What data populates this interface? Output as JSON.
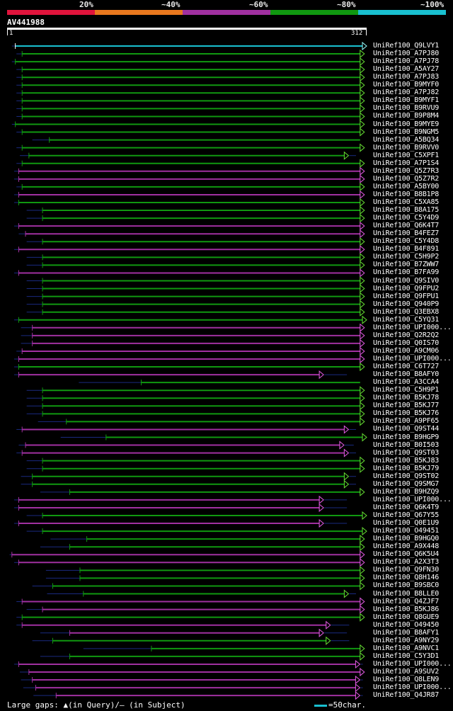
{
  "legend": {
    "labels": [
      "20%",
      "~40%",
      "~60%",
      "~80%",
      "~100%"
    ],
    "colors": [
      "#e0143c",
      "#e8781e",
      "#a030a0",
      "#109810",
      "#19c0d0"
    ]
  },
  "query": {
    "name": "AV441988",
    "start_label": "1",
    "end_label": "312",
    "length": 312
  },
  "colors": {
    "green": "#109810",
    "magenta": "#a030a0",
    "cyan": "#19c0d0",
    "gap_line": "#1a2a80",
    "arrow_green": "#66e033",
    "arrow_magenta": "#e65ce6"
  },
  "hits": [
    {
      "name": "UniRef100_Q9LVY1",
      "c": "cyan",
      "s": 6,
      "e": 312,
      "l": 3,
      "r": 0,
      "ar": true
    },
    {
      "name": "UniRef100_A7PJ80",
      "c": "green",
      "s": 12,
      "e": 310,
      "l": 5,
      "r": 0,
      "ar": true
    },
    {
      "name": "UniRef100_A7PJ78",
      "c": "green",
      "s": 6,
      "e": 310,
      "l": 3,
      "r": 0,
      "ar": true
    },
    {
      "name": "UniRef100_A5AY27",
      "c": "green",
      "s": 12,
      "e": 310,
      "l": 5,
      "r": 0,
      "ar": true
    },
    {
      "name": "UniRef100_A7PJ83",
      "c": "green",
      "s": 12,
      "e": 310,
      "l": 5,
      "r": 0,
      "ar": true
    },
    {
      "name": "UniRef100_B9MYF0",
      "c": "green",
      "s": 12,
      "e": 310,
      "l": 5,
      "r": 0,
      "ar": true
    },
    {
      "name": "UniRef100_A7PJ82",
      "c": "green",
      "s": 12,
      "e": 310,
      "l": 5,
      "r": 0,
      "ar": true
    },
    {
      "name": "UniRef100_B9MYF1",
      "c": "green",
      "s": 12,
      "e": 310,
      "l": 5,
      "r": 0,
      "ar": true
    },
    {
      "name": "UniRef100_B9RVU9",
      "c": "green",
      "s": 12,
      "e": 310,
      "l": 5,
      "r": 0,
      "ar": true
    },
    {
      "name": "UniRef100_B9P8M4",
      "c": "green",
      "s": 12,
      "e": 310,
      "l": 5,
      "r": 0,
      "ar": true
    },
    {
      "name": "UniRef100_B9MYE9",
      "c": "green",
      "s": 6,
      "e": 310,
      "l": 3,
      "r": 0,
      "ar": true
    },
    {
      "name": "UniRef100_B9NGM5",
      "c": "green",
      "s": 12,
      "e": 310,
      "l": 5,
      "r": 0,
      "ar": true
    },
    {
      "name": "UniRef100_A5BQ34",
      "c": "green",
      "s": 36,
      "e": 310,
      "l": 15,
      "r": 0,
      "ar": false
    },
    {
      "name": "UniRef100_B9RVV0",
      "c": "green",
      "s": 12,
      "e": 310,
      "l": 5,
      "r": 0,
      "ar": true
    },
    {
      "name": "UniRef100_C5XPF1",
      "c": "green",
      "s": 18,
      "e": 296,
      "l": 8,
      "r": 6,
      "ar": true
    },
    {
      "name": "UniRef100_A7P1S4",
      "c": "green",
      "s": 12,
      "e": 310,
      "l": 5,
      "r": 0,
      "ar": true
    },
    {
      "name": "UniRef100_Q5Z7R3",
      "c": "magenta",
      "s": 9,
      "e": 310,
      "l": 4,
      "r": 0,
      "ar": true
    },
    {
      "name": "UniRef100_Q5Z7R2",
      "c": "magenta",
      "s": 9,
      "e": 310,
      "l": 4,
      "r": 0,
      "ar": true
    },
    {
      "name": "UniRef100_A5BY00",
      "c": "green",
      "s": 12,
      "e": 310,
      "l": 5,
      "r": 0,
      "ar": true
    },
    {
      "name": "UniRef100_B8B1P8",
      "c": "magenta",
      "s": 9,
      "e": 310,
      "l": 4,
      "r": 0,
      "ar": true
    },
    {
      "name": "UniRef100_C5XA85",
      "c": "green",
      "s": 9,
      "e": 310,
      "l": 4,
      "r": 0,
      "ar": true
    },
    {
      "name": "UniRef100_B8A175",
      "c": "green",
      "s": 30,
      "e": 310,
      "l": 14,
      "r": 0,
      "ar": true
    },
    {
      "name": "UniRef100_C5Y4D9",
      "c": "green",
      "s": 30,
      "e": 310,
      "l": 14,
      "r": 0,
      "ar": true
    },
    {
      "name": "UniRef100_Q6K4T7",
      "c": "magenta",
      "s": 9,
      "e": 310,
      "l": 4,
      "r": 0,
      "ar": true
    },
    {
      "name": "UniRef100_B4FEZ7",
      "c": "magenta",
      "s": 15,
      "e": 310,
      "l": 6,
      "r": 0,
      "ar": true
    },
    {
      "name": "UniRef100_C5Y4D8",
      "c": "green",
      "s": 30,
      "e": 310,
      "l": 14,
      "r": 0,
      "ar": true
    },
    {
      "name": "UniRef100_B4F891",
      "c": "magenta",
      "s": 9,
      "e": 310,
      "l": 4,
      "r": 0,
      "ar": true
    },
    {
      "name": "UniRef100_C5H9P2",
      "c": "green",
      "s": 30,
      "e": 310,
      "l": 14,
      "r": 0,
      "ar": true
    },
    {
      "name": "UniRef100_B7ZWW7",
      "c": "green",
      "s": 30,
      "e": 310,
      "l": 14,
      "r": 0,
      "ar": true
    },
    {
      "name": "UniRef100_B7FA99",
      "c": "magenta",
      "s": 9,
      "e": 310,
      "l": 4,
      "r": 0,
      "ar": true
    },
    {
      "name": "UniRef100_Q9SIV0",
      "c": "green",
      "s": 30,
      "e": 310,
      "l": 14,
      "r": 0,
      "ar": true
    },
    {
      "name": "UniRef100_Q9FPU2",
      "c": "green",
      "s": 30,
      "e": 310,
      "l": 14,
      "r": 0,
      "ar": true
    },
    {
      "name": "UniRef100_Q9FPU1",
      "c": "green",
      "s": 30,
      "e": 310,
      "l": 14,
      "r": 0,
      "ar": true
    },
    {
      "name": "UniRef100_Q940P9",
      "c": "green",
      "s": 30,
      "e": 310,
      "l": 14,
      "r": 0,
      "ar": true
    },
    {
      "name": "UniRef100_Q3EBX8",
      "c": "green",
      "s": 30,
      "e": 310,
      "l": 14,
      "r": 0,
      "ar": true
    },
    {
      "name": "UniRef100_C5YQ31",
      "c": "green",
      "s": 9,
      "e": 312,
      "l": 4,
      "r": 0,
      "ar": true
    },
    {
      "name": "UniRef100_UPI000...",
      "c": "magenta",
      "s": 21,
      "e": 310,
      "l": 10,
      "r": 0,
      "ar": true
    },
    {
      "name": "UniRef100_Q2R2Q2",
      "c": "magenta",
      "s": 21,
      "e": 310,
      "l": 10,
      "r": 0,
      "ar": true
    },
    {
      "name": "UniRef100_Q0IS70",
      "c": "magenta",
      "s": 21,
      "e": 310,
      "l": 10,
      "r": 0,
      "ar": true
    },
    {
      "name": "UniRef100_A9CM06",
      "c": "magenta",
      "s": 12,
      "e": 310,
      "l": 5,
      "r": 0,
      "ar": true
    },
    {
      "name": "UniRef100_UPI000...",
      "c": "magenta",
      "s": 9,
      "e": 310,
      "l": 4,
      "r": 0,
      "ar": true
    },
    {
      "name": "UniRef100_C6T727",
      "c": "green",
      "s": 9,
      "e": 310,
      "l": 4,
      "r": 0,
      "ar": true
    },
    {
      "name": "UniRef100_B8AFY0",
      "c": "magenta",
      "s": 9,
      "e": 274,
      "l": 4,
      "r": 20,
      "ar": true
    },
    {
      "name": "UniRef100_A3CCA4",
      "c": "green",
      "s": 117,
      "e": 310,
      "l": 55,
      "r": 0,
      "ar": false
    },
    {
      "name": "UniRef100_C5H9P1",
      "c": "green",
      "s": 30,
      "e": 310,
      "l": 14,
      "r": 0,
      "ar": true
    },
    {
      "name": "UniRef100_B5KJ78",
      "c": "green",
      "s": 30,
      "e": 310,
      "l": 14,
      "r": 0,
      "ar": true
    },
    {
      "name": "UniRef100_B5KJ77",
      "c": "green",
      "s": 30,
      "e": 310,
      "l": 14,
      "r": 0,
      "ar": true
    },
    {
      "name": "UniRef100_B5KJ76",
      "c": "green",
      "s": 30,
      "e": 310,
      "l": 14,
      "r": 0,
      "ar": true
    },
    {
      "name": "UniRef100_A9PF65",
      "c": "green",
      "s": 51,
      "e": 310,
      "l": 25,
      "r": 0,
      "ar": true
    },
    {
      "name": "UniRef100_Q9ST44",
      "c": "magenta",
      "s": 12,
      "e": 296,
      "l": 5,
      "r": 6,
      "ar": true
    },
    {
      "name": "UniRef100_B9HGP9",
      "c": "green",
      "s": 86,
      "e": 312,
      "l": 40,
      "r": 0,
      "ar": true
    },
    {
      "name": "UniRef100_B0I503",
      "c": "magenta",
      "s": 15,
      "e": 292,
      "l": 6,
      "r": 8,
      "ar": true
    },
    {
      "name": "UniRef100_Q9ST03",
      "c": "magenta",
      "s": 12,
      "e": 296,
      "l": 5,
      "r": 6,
      "ar": true
    },
    {
      "name": "UniRef100_B5KJ83",
      "c": "green",
      "s": 30,
      "e": 310,
      "l": 14,
      "r": 0,
      "ar": true
    },
    {
      "name": "UniRef100_B5KJ79",
      "c": "green",
      "s": 30,
      "e": 310,
      "l": 14,
      "r": 0,
      "ar": true
    },
    {
      "name": "UniRef100_Q9ST02",
      "c": "green",
      "s": 21,
      "e": 296,
      "l": 10,
      "r": 6,
      "ar": true
    },
    {
      "name": "UniRef100_Q9SMG7",
      "c": "green",
      "s": 21,
      "e": 296,
      "l": 10,
      "r": 6,
      "ar": true
    },
    {
      "name": "UniRef100_B9HZQ9",
      "c": "green",
      "s": 54,
      "e": 310,
      "l": 26,
      "r": 0,
      "ar": true
    },
    {
      "name": "UniRef100_UPI000...",
      "c": "magenta",
      "s": 9,
      "e": 274,
      "l": 4,
      "r": 20,
      "ar": true
    },
    {
      "name": "UniRef100_Q6K4T9",
      "c": "magenta",
      "s": 9,
      "e": 274,
      "l": 4,
      "r": 20,
      "ar": true
    },
    {
      "name": "UniRef100_Q67Y55",
      "c": "green",
      "s": 30,
      "e": 312,
      "l": 14,
      "r": 0,
      "ar": true
    },
    {
      "name": "UniRef100_Q0E1U9",
      "c": "magenta",
      "s": 9,
      "e": 274,
      "l": 4,
      "r": 20,
      "ar": true
    },
    {
      "name": "UniRef100_O49451",
      "c": "green",
      "s": 30,
      "e": 312,
      "l": 14,
      "r": 0,
      "ar": true
    },
    {
      "name": "UniRef100_B9HGQ0",
      "c": "green",
      "s": 69,
      "e": 310,
      "l": 32,
      "r": 0,
      "ar": true
    },
    {
      "name": "UniRef100_A9X448",
      "c": "green",
      "s": 54,
      "e": 310,
      "l": 26,
      "r": 0,
      "ar": true
    },
    {
      "name": "UniRef100_Q6K5U4",
      "c": "magenta",
      "s": 3,
      "e": 310,
      "l": 2,
      "r": 0,
      "ar": true
    },
    {
      "name": "UniRef100_A2X3T3",
      "c": "magenta",
      "s": 9,
      "e": 310,
      "l": 4,
      "r": 0,
      "ar": true
    },
    {
      "name": "UniRef100_Q9FN30",
      "c": "green",
      "s": 63,
      "e": 310,
      "l": 30,
      "r": 0,
      "ar": true
    },
    {
      "name": "UniRef100_Q8H146",
      "c": "green",
      "s": 63,
      "e": 310,
      "l": 30,
      "r": 0,
      "ar": true
    },
    {
      "name": "UniRef100_B9SBC0",
      "c": "green",
      "s": 39,
      "e": 310,
      "l": 18,
      "r": 0,
      "ar": true
    },
    {
      "name": "UniRef100_B8LLE0",
      "c": "green",
      "s": 66,
      "e": 296,
      "l": 32,
      "r": 6,
      "ar": true
    },
    {
      "name": "UniRef100_Q4ZJF7",
      "c": "magenta",
      "s": 12,
      "e": 310,
      "l": 5,
      "r": 0,
      "ar": true
    },
    {
      "name": "UniRef100_B5KJ86",
      "c": "magenta",
      "s": 30,
      "e": 310,
      "l": 14,
      "r": 0,
      "ar": true
    },
    {
      "name": "UniRef100_Q8GUE9",
      "c": "green",
      "s": 12,
      "e": 310,
      "l": 5,
      "r": 0,
      "ar": true
    },
    {
      "name": "UniRef100_O49450",
      "c": "magenta",
      "s": 12,
      "e": 280,
      "l": 5,
      "r": 16,
      "ar": true
    },
    {
      "name": "UniRef100_B8AFY1",
      "c": "magenta",
      "s": 54,
      "e": 274,
      "l": 26,
      "r": 20,
      "ar": true
    },
    {
      "name": "UniRef100_A9NY29",
      "c": "green",
      "s": 39,
      "e": 280,
      "l": 18,
      "r": 16,
      "ar": true
    },
    {
      "name": "UniRef100_A9NVC1",
      "c": "green",
      "s": 126,
      "e": 310,
      "l": 60,
      "r": 0,
      "ar": true
    },
    {
      "name": "UniRef100_C5Y3D1",
      "c": "green",
      "s": 54,
      "e": 310,
      "l": 26,
      "r": 0,
      "ar": true
    },
    {
      "name": "UniRef100_UPI000...",
      "c": "magenta",
      "s": 9,
      "e": 306,
      "l": 4,
      "r": 2,
      "ar": true
    },
    {
      "name": "UniRef100_A9SUV2",
      "c": "magenta",
      "s": 18,
      "e": 310,
      "l": 8,
      "r": 0,
      "ar": true
    },
    {
      "name": "UniRef100_Q8LEN9",
      "c": "magenta",
      "s": 21,
      "e": 306,
      "l": 10,
      "r": 2,
      "ar": true
    },
    {
      "name": "UniRef100_UPI000...",
      "c": "magenta",
      "s": 24,
      "e": 306,
      "l": 11,
      "r": 2,
      "ar": true
    },
    {
      "name": "UniRef100_Q4JR87",
      "c": "magenta",
      "s": 42,
      "e": 306,
      "l": 20,
      "r": 2,
      "ar": true
    }
  ],
  "footer": {
    "left": "Large gaps: ▲(in Query)/– (in Subject)",
    "right": "=50char."
  }
}
